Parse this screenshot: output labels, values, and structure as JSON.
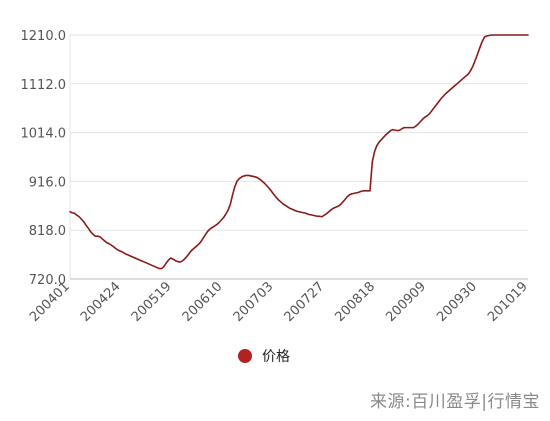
{
  "chart_data": {
    "type": "line",
    "ylim": [
      720.0,
      1210.0
    ],
    "y_ticks": [
      "1210.0",
      "1112.0",
      "1014.0",
      "916.0",
      "818.0",
      "720.0"
    ],
    "y_tick_values": [
      1210,
      1112,
      1014,
      916,
      818,
      720
    ],
    "x_ticks": [
      "200401",
      "200424",
      "200519",
      "200610",
      "200703",
      "200727",
      "200818",
      "200909",
      "200930",
      "201019"
    ],
    "grid": "horizontal",
    "legend_position": "bottom",
    "series": [
      {
        "name": "价格",
        "color": "#8b1a1a",
        "x": [
          0,
          1,
          2,
          3,
          4,
          5,
          6,
          7,
          8,
          9,
          10,
          11,
          12,
          13,
          14,
          15,
          16,
          17,
          18,
          19,
          20,
          21,
          22,
          23,
          24,
          25,
          26,
          27,
          28,
          29,
          30,
          31,
          32,
          33,
          34,
          35,
          36,
          37,
          38,
          39,
          40,
          41,
          42,
          43,
          44,
          45,
          46,
          47,
          48,
          49,
          50,
          51,
          52,
          53,
          54,
          55,
          56,
          57,
          58,
          59,
          60,
          61,
          62,
          63,
          64,
          65,
          66,
          67,
          68,
          69,
          70,
          71,
          72,
          73,
          74,
          75,
          76,
          77,
          78,
          79,
          80,
          81,
          82,
          83,
          84,
          85,
          86,
          87,
          88,
          89,
          90,
          91,
          92,
          93,
          94,
          95,
          96,
          97,
          98,
          99,
          100,
          101,
          102,
          103,
          104,
          105,
          106,
          107,
          108,
          109,
          110,
          111,
          112,
          113,
          114,
          115,
          116,
          117,
          118,
          119,
          120,
          121,
          122,
          123,
          124,
          125,
          126,
          127,
          128,
          129,
          130,
          131,
          132,
          133,
          134,
          135,
          136,
          137,
          138,
          139,
          140,
          141,
          142,
          143,
          144,
          145,
          146,
          147,
          148,
          149,
          150,
          151,
          152,
          153,
          154,
          155,
          156,
          157,
          158,
          159,
          160,
          161,
          162,
          163,
          164,
          165,
          166,
          167,
          168,
          169,
          170,
          171,
          172,
          173,
          174,
          175,
          176,
          177,
          178,
          179,
          180,
          181,
          182,
          183,
          184,
          185,
          186,
          187,
          188,
          189,
          190,
          191,
          192,
          193,
          194,
          195,
          196,
          197,
          198,
          199,
          200
        ],
        "values": [
          855,
          853,
          852,
          848,
          845,
          840,
          835,
          828,
          822,
          815,
          810,
          806,
          806,
          805,
          801,
          797,
          793,
          791,
          788,
          785,
          781,
          778,
          776,
          774,
          771,
          769,
          767,
          765,
          763,
          761,
          759,
          757,
          755,
          753,
          751,
          749,
          747,
          745,
          743,
          741,
          741,
          745,
          752,
          758,
          762,
          760,
          757,
          755,
          754,
          756,
          760,
          765,
          771,
          777,
          781,
          785,
          789,
          794,
          801,
          808,
          815,
          820,
          823,
          826,
          829,
          833,
          838,
          843,
          850,
          858,
          870,
          889,
          906,
          917,
          922,
          925,
          927,
          928,
          928,
          927,
          926,
          925,
          923,
          920,
          916,
          912,
          907,
          902,
          896,
          890,
          884,
          879,
          875,
          871,
          868,
          865,
          862,
          860,
          858,
          856,
          855,
          854,
          853,
          852,
          850,
          849,
          848,
          847,
          846,
          846,
          845,
          848,
          851,
          855,
          859,
          862,
          864,
          866,
          869,
          874,
          879,
          885,
          889,
          891,
          892,
          893,
          894,
          896,
          897,
          897,
          897,
          897,
          955,
          976,
          988,
          995,
          1000,
          1005,
          1010,
          1014,
          1018,
          1020,
          1019,
          1018,
          1019,
          1022,
          1024,
          1024,
          1024,
          1024,
          1024,
          1027,
          1031,
          1036,
          1041,
          1045,
          1048,
          1052,
          1058,
          1064,
          1070,
          1076,
          1082,
          1087,
          1092,
          1096,
          1100,
          1104,
          1108,
          1112,
          1116,
          1120,
          1124,
          1128,
          1132,
          1139,
          1148,
          1160,
          1172,
          1185,
          1197,
          1206,
          1208,
          1209,
          1210,
          1210,
          1210,
          1210,
          1210,
          1210,
          1210,
          1210,
          1210,
          1210,
          1210,
          1210,
          1210,
          1210,
          1210,
          1210,
          1210
        ]
      }
    ]
  },
  "legend": {
    "label": "价格"
  },
  "source": {
    "text": "来源:百川盈孚|行情宝"
  }
}
